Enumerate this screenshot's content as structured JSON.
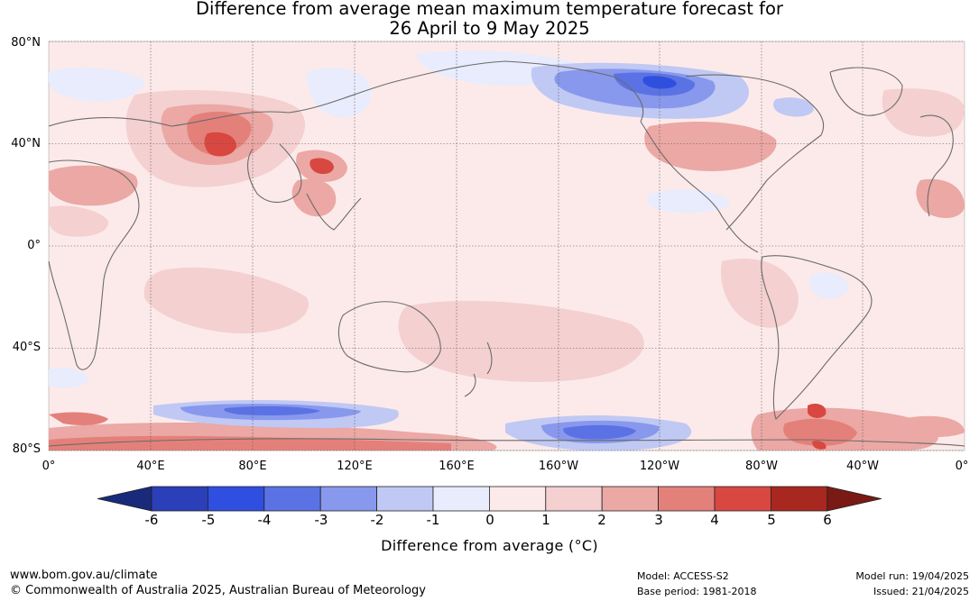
{
  "title_line1": "Difference from average mean maximum temperature forecast for",
  "title_line2": "26 April to 9 May 2025",
  "lat_labels": [
    "80°N",
    "40°N",
    "0°",
    "40°S",
    "80°S"
  ],
  "lon_labels": [
    "0°",
    "40°E",
    "80°E",
    "120°E",
    "160°E",
    "160°W",
    "120°W",
    "80°W",
    "40°W",
    "0°"
  ],
  "colorbar": {
    "ticks": [
      "-6",
      "-5",
      "-4",
      "-3",
      "-2",
      "-1",
      "0",
      "1",
      "2",
      "3",
      "4",
      "5",
      "6"
    ],
    "colors": [
      "#1a2a7a",
      "#2a3fb8",
      "#2f4fe0",
      "#5a72e4",
      "#8898ec",
      "#c0c8f4",
      "#e8ecfc",
      "#fceaea",
      "#f4d0d0",
      "#eba8a4",
      "#e4807a",
      "#d84840",
      "#a82820",
      "#7a1a14"
    ],
    "label": "Difference from average (°C)"
  },
  "footer": {
    "website": "www.bom.gov.au/climate",
    "copyright": "© Commonwealth of Australia 2025, Australian Bureau of Meteorology",
    "model": "Model: ACCESS-S2",
    "base_period": "Base period: 1981-2018",
    "model_run": "Model run: 19/04/2025",
    "issued": "Issued: 21/04/2025"
  }
}
